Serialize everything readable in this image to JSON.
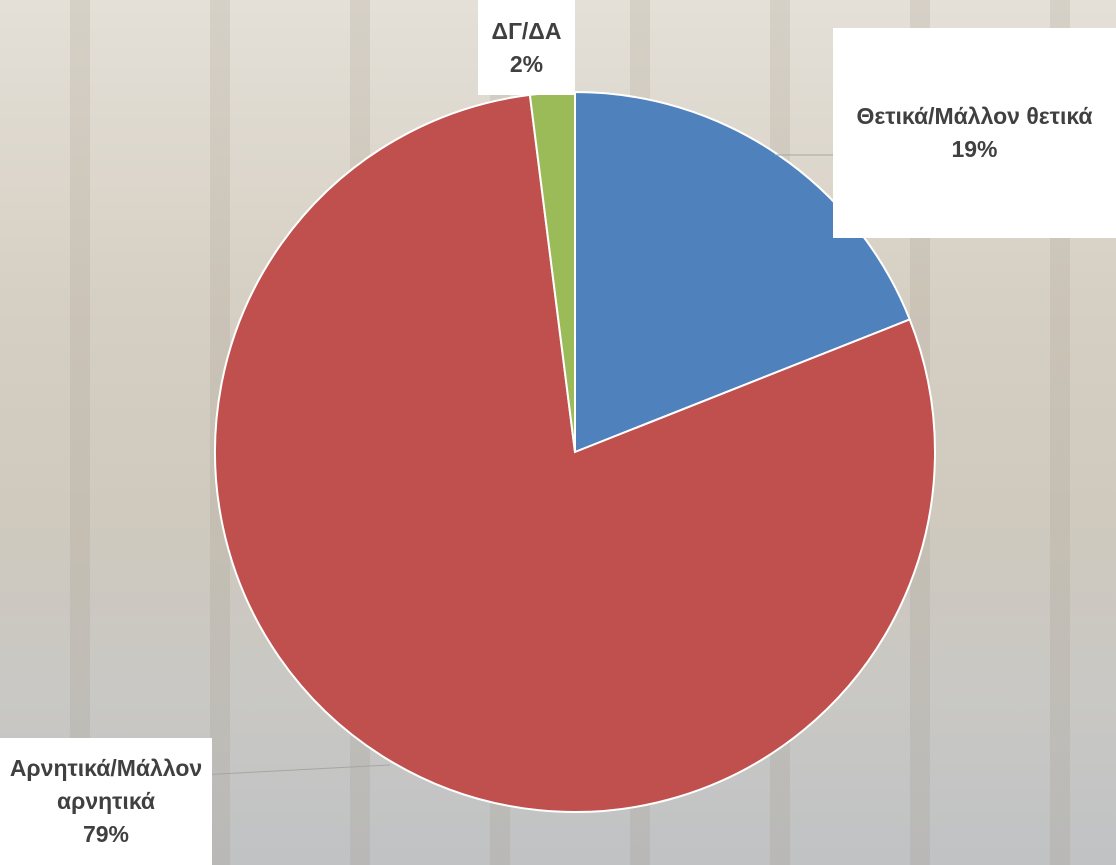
{
  "chart_data": {
    "type": "pie",
    "categories": [
      "Θετικά/Μάλλον θετικά",
      "Αρνητικά/Μάλλον αρνητικά",
      "ΔΓ/ΔΑ"
    ],
    "values": [
      19,
      79,
      2
    ],
    "value_labels": [
      "19%",
      "79%",
      "2%"
    ],
    "colors": [
      "#4f81bd",
      "#c0504d",
      "#9bbb59"
    ]
  }
}
